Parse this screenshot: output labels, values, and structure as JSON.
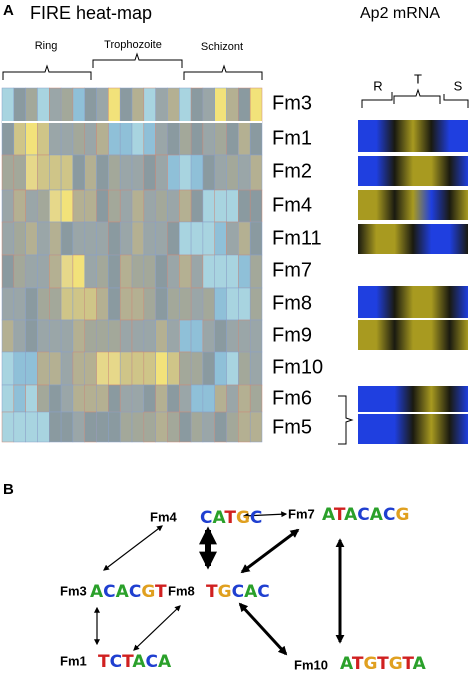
{
  "panel_a": {
    "label": "A",
    "heatmap_title": "FIRE heat-map",
    "mrna_title": "Ap2 mRNA",
    "stages": [
      "Ring",
      "Trophozoite",
      "Schizont"
    ],
    "mrna_stages": [
      "R",
      "T",
      "S"
    ],
    "rows": [
      "Fm3",
      "Fm1",
      "Fm2",
      "Fm4",
      "Fm11",
      "Fm7",
      "Fm8",
      "Fm9",
      "Fm10",
      "Fm6",
      "Fm5"
    ]
  },
  "panel_b": {
    "label": "B",
    "nodes": [
      {
        "label": "Fm4",
        "motif": "CATGC"
      },
      {
        "label": "Fm7",
        "motif": "ATACACG"
      },
      {
        "label": "Fm3",
        "motif": "ACACGT"
      },
      {
        "label": "Fm8",
        "motif": "TGCAC"
      },
      {
        "label": "Fm1",
        "motif": "TCTACA"
      },
      {
        "label": "Fm10",
        "motif": "ATGTGTA"
      }
    ]
  }
}
